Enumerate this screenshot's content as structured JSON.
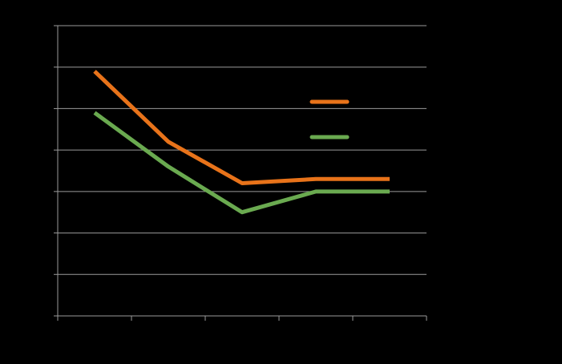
{
  "chart_data": {
    "type": "line",
    "title": "",
    "xlabel": "",
    "ylabel": "",
    "x": [
      1,
      2,
      3,
      4,
      5
    ],
    "xlim": [
      0.5,
      5.5
    ],
    "ylim": [
      0,
      7
    ],
    "grid": true,
    "legend": "right",
    "series": [
      {
        "color": "#e8731a",
        "values": [
          5.9,
          4.2,
          3.2,
          3.3,
          3.3
        ]
      },
      {
        "color": "#6aaa50",
        "values": [
          4.9,
          3.6,
          2.5,
          3.0,
          3.0
        ]
      }
    ]
  },
  "colors": {
    "background": "#000000",
    "gridline": "#9a9a9a"
  }
}
